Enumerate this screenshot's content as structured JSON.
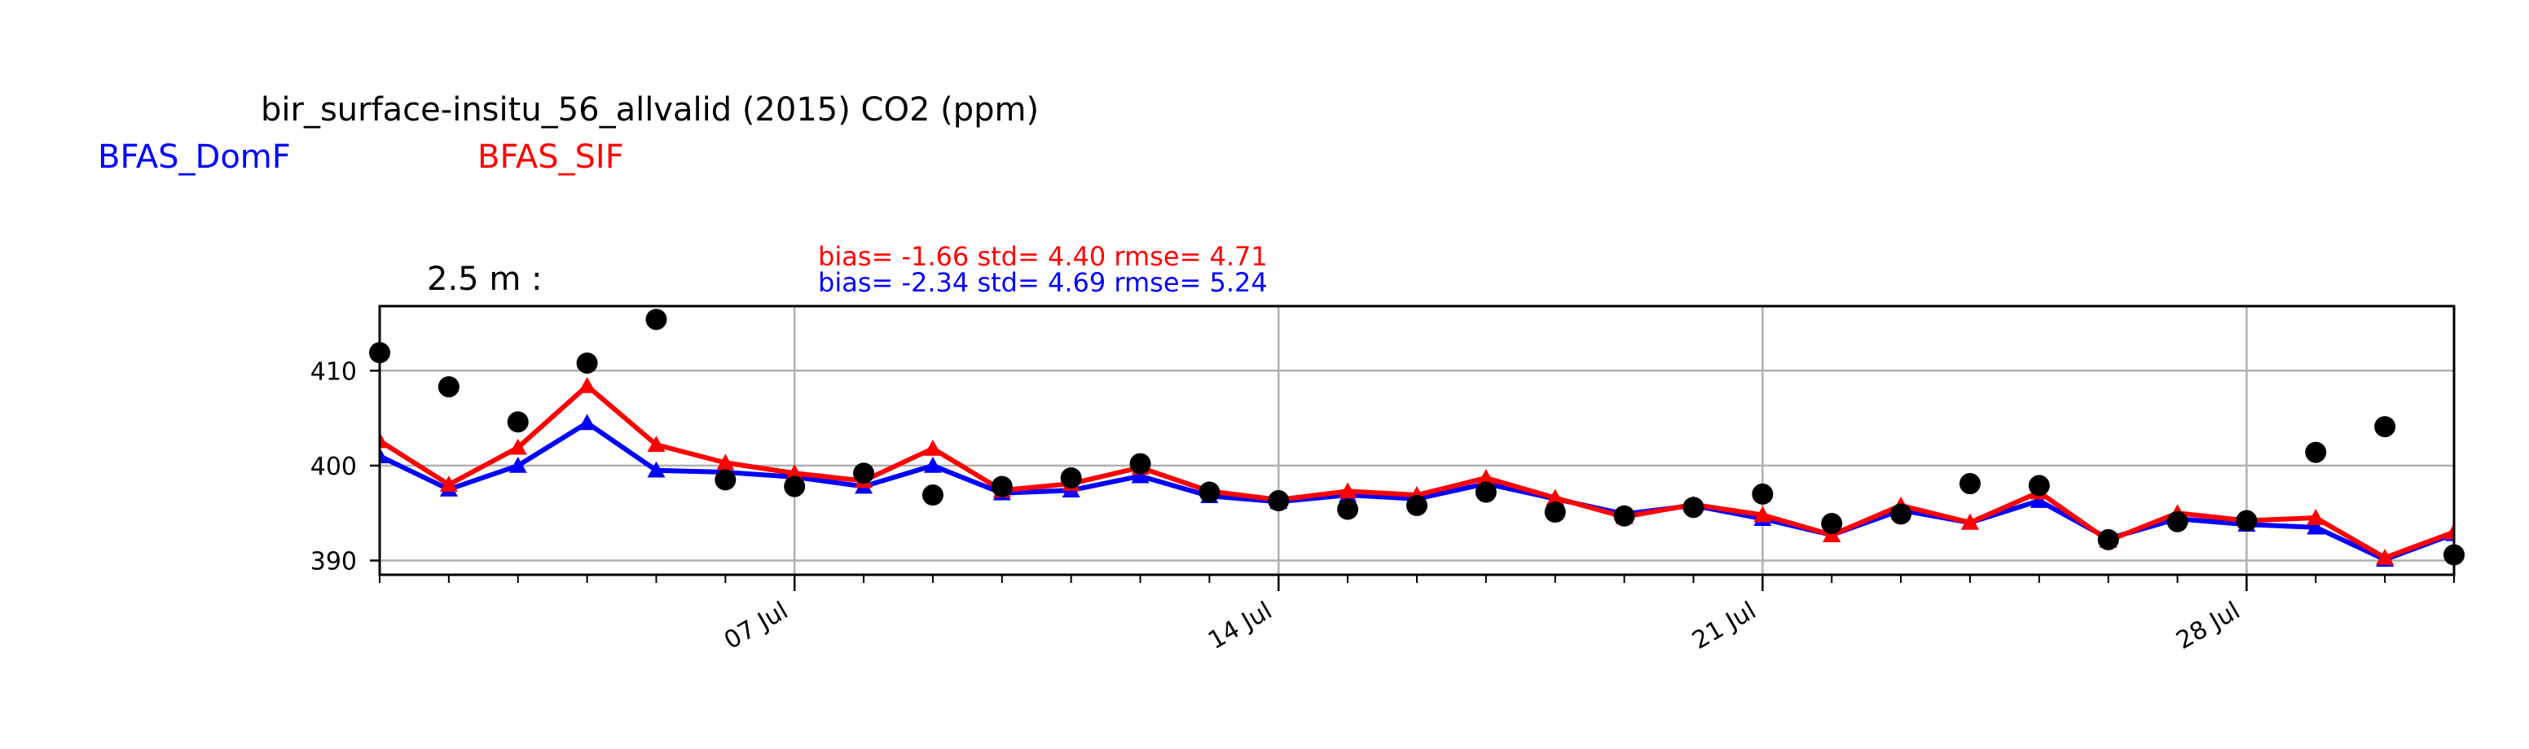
{
  "title": "bir_surface-insitu_56_allvalid (2015) CO2 (ppm)",
  "legend": [
    {
      "label": "BFAS_DomF",
      "color": "#0000ff"
    },
    {
      "label": "BFAS_SIF",
      "color": "#ff0000"
    }
  ],
  "panel_label": "2.5 m :",
  "stats": {
    "sif": "bias= -1.66 std= 4.40 rmse= 4.71",
    "domf": "bias= -2.34 std= 4.69 rmse= 5.24"
  },
  "chart_data": {
    "type": "line",
    "title": "bir_surface-insitu_56_allvalid (2015) CO2 (ppm)",
    "xlabel": "",
    "ylabel": "",
    "xlim": [
      "2015-07-01",
      "2015-07-31"
    ],
    "ylim": [
      388.5,
      416.8
    ],
    "yticks": [
      390,
      400,
      410
    ],
    "xtick_labels": [
      {
        "label": "07 Jul",
        "date": "2015-07-07"
      },
      {
        "label": "14 Jul",
        "date": "2015-07-14"
      },
      {
        "label": "21 Jul",
        "date": "2015-07-21"
      },
      {
        "label": "28 Jul",
        "date": "2015-07-28"
      }
    ],
    "grid": true,
    "x": [
      "2015-07-01",
      "2015-07-02",
      "2015-07-03",
      "2015-07-04",
      "2015-07-05",
      "2015-07-06",
      "2015-07-07",
      "2015-07-08",
      "2015-07-09",
      "2015-07-10",
      "2015-07-11",
      "2015-07-12",
      "2015-07-13",
      "2015-07-14",
      "2015-07-15",
      "2015-07-16",
      "2015-07-17",
      "2015-07-18",
      "2015-07-19",
      "2015-07-20",
      "2015-07-21",
      "2015-07-22",
      "2015-07-23",
      "2015-07-24",
      "2015-07-25",
      "2015-07-26",
      "2015-07-27",
      "2015-07-28",
      "2015-07-29",
      "2015-07-30",
      "2015-07-31"
    ],
    "series": [
      {
        "name": "",
        "marker": "circle",
        "color": "#000000",
        "values": [
          411.9,
          408.3,
          404.6,
          410.8,
          415.4,
          398.5,
          397.8,
          399.2,
          396.9,
          397.8,
          398.7,
          400.2,
          397.2,
          396.3,
          395.4,
          395.8,
          397.2,
          395.1,
          394.7,
          395.6,
          397.0,
          393.9,
          394.9,
          398.1,
          397.9,
          392.2,
          394.1,
          394.2,
          401.4,
          404.1,
          390.6
        ]
      },
      {
        "name": "BFAS_DomF",
        "marker": "triangle",
        "color": "#0000ff",
        "values": [
          401.0,
          397.5,
          400.0,
          404.5,
          399.5,
          399.3,
          398.8,
          397.8,
          400.0,
          397.1,
          397.4,
          398.9,
          396.8,
          396.2,
          396.9,
          396.5,
          398.1,
          396.5,
          394.9,
          395.8,
          394.4,
          392.7,
          395.3,
          394.0,
          396.3,
          392.3,
          394.4,
          393.8,
          393.5,
          390.1,
          392.8
        ]
      },
      {
        "name": "BFAS_SIF",
        "marker": "triangle",
        "color": "#ff0000",
        "values": [
          402.6,
          398.0,
          401.9,
          408.4,
          402.2,
          400.3,
          399.2,
          398.4,
          401.8,
          397.4,
          398.1,
          399.8,
          397.3,
          396.4,
          397.3,
          396.9,
          398.7,
          396.6,
          394.6,
          395.9,
          394.8,
          392.7,
          395.8,
          394.0,
          397.2,
          392.1,
          395.0,
          394.2,
          394.5,
          390.3,
          393.0
        ]
      }
    ]
  }
}
